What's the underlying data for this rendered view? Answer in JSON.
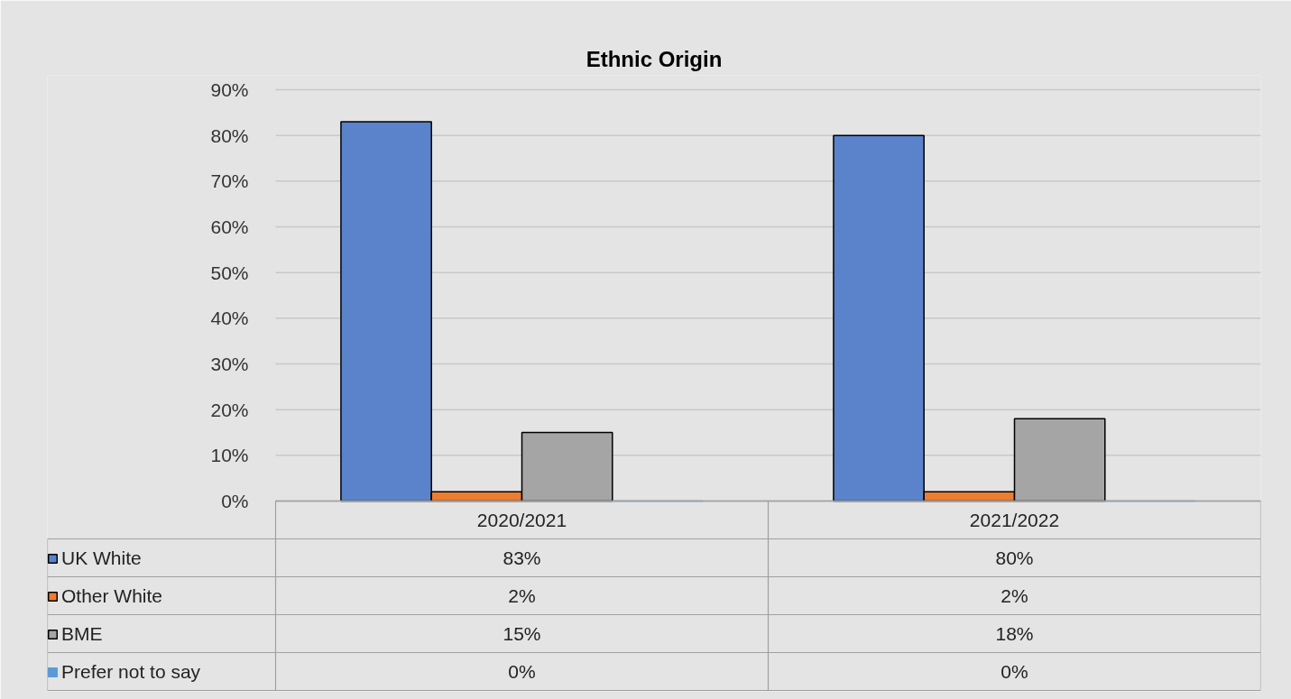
{
  "chart_data": {
    "type": "bar",
    "title": "Ethnic Origin",
    "categories": [
      "2020/2021",
      "2021/2022"
    ],
    "series": [
      {
        "name": "UK White",
        "color": "#5b83cc",
        "values": [
          83,
          80
        ],
        "value_labels": [
          "83%",
          "80%"
        ]
      },
      {
        "name": "Other White",
        "color": "#ed7d31",
        "values": [
          2,
          2
        ],
        "value_labels": [
          "2%",
          "2%"
        ]
      },
      {
        "name": "BME",
        "color": "#a5a5a5",
        "values": [
          15,
          18
        ],
        "value_labels": [
          "15%",
          "18%"
        ]
      },
      {
        "name": "Prefer not to say",
        "color": "#5b9bd5",
        "values": [
          0,
          0
        ],
        "value_labels": [
          "0%",
          "0%"
        ]
      }
    ],
    "ylim": [
      0,
      90
    ],
    "yticks": [
      {
        "value": 0,
        "label": "0%"
      },
      {
        "value": 10,
        "label": "10%"
      },
      {
        "value": 20,
        "label": "20%"
      },
      {
        "value": 30,
        "label": "30%"
      },
      {
        "value": 40,
        "label": "40%"
      },
      {
        "value": 50,
        "label": "50%"
      },
      {
        "value": 60,
        "label": "60%"
      },
      {
        "value": 70,
        "label": "70%"
      },
      {
        "value": 80,
        "label": "80%"
      },
      {
        "value": 90,
        "label": "90%"
      }
    ],
    "grid": "y",
    "legend": "bottom"
  }
}
